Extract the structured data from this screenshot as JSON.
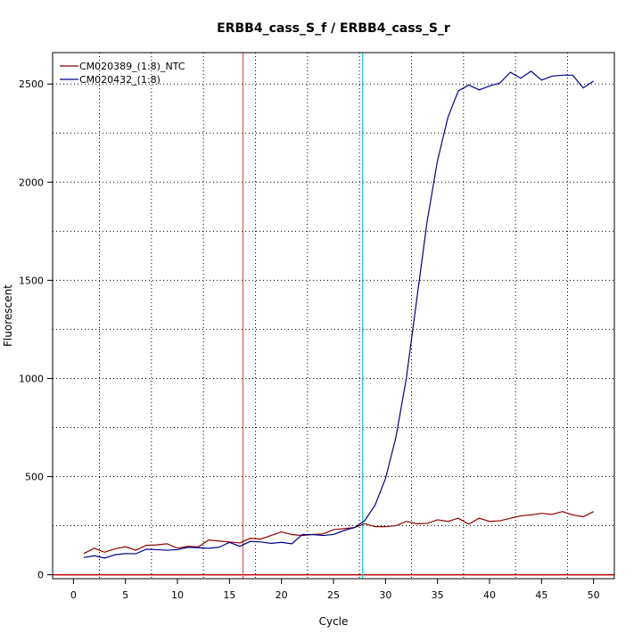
{
  "chart_data": {
    "type": "line",
    "title": "ERBB4_cass_S_f / ERBB4_cass_S_r",
    "xlabel": "Cycle",
    "ylabel": "Fluorescent",
    "xlim": [
      -2,
      52
    ],
    "ylim": [
      -20,
      2660
    ],
    "x_ticks": [
      0,
      5,
      10,
      15,
      20,
      25,
      30,
      35,
      40,
      45,
      50
    ],
    "y_ticks": [
      0,
      500,
      1000,
      1500,
      2000,
      2500
    ],
    "grid": "dotted",
    "legend_position": "top-left",
    "x": [
      1,
      2,
      3,
      4,
      5,
      6,
      7,
      8,
      9,
      10,
      11,
      12,
      13,
      14,
      15,
      16,
      17,
      18,
      19,
      20,
      21,
      22,
      23,
      24,
      25,
      26,
      27,
      28,
      29,
      30,
      31,
      32,
      33,
      34,
      35,
      36,
      37,
      38,
      39,
      40,
      41,
      42,
      43,
      44,
      45,
      46,
      47,
      48,
      49,
      50
    ],
    "series": [
      {
        "name": "CM020389_(1:8)_NTC",
        "color": "#8b0000",
        "values": [
          108,
          135,
          115,
          132,
          143,
          125,
          150,
          152,
          158,
          136,
          145,
          142,
          177,
          172,
          167,
          162,
          186,
          182,
          200,
          218,
          205,
          200,
          205,
          208,
          230,
          235,
          240,
          260,
          245,
          245,
          250,
          272,
          260,
          262,
          280,
          272,
          288,
          258,
          288,
          272,
          275,
          288,
          300,
          305,
          313,
          307,
          322,
          305,
          295,
          322
        ]
      },
      {
        "name": "CM020432_(1:8)",
        "color": "#00008b",
        "values": [
          88,
          97,
          85,
          102,
          108,
          107,
          130,
          128,
          125,
          128,
          140,
          138,
          135,
          140,
          165,
          145,
          170,
          167,
          160,
          165,
          158,
          205,
          205,
          200,
          205,
          225,
          240,
          275,
          355,
          490,
          700,
          1000,
          1400,
          1800,
          2110,
          2330,
          2465,
          2495,
          2470,
          2490,
          2505,
          2560,
          2530,
          2565,
          2520,
          2540,
          2545,
          2545,
          2480,
          2515
        ]
      }
    ],
    "reference_lines": {
      "vertical": [
        {
          "x": 16.3,
          "color": "#e07070"
        },
        {
          "x": 27.8,
          "color": "#00e5e5"
        }
      ],
      "horizontal": [
        {
          "y": 0,
          "color": "#c00000"
        }
      ]
    },
    "colors": {
      "ntc": "#8b0000",
      "sample": "#00008b",
      "threshold_red": "#e07070",
      "threshold_cyan": "#00e5e5",
      "baseline": "#c00000"
    }
  }
}
